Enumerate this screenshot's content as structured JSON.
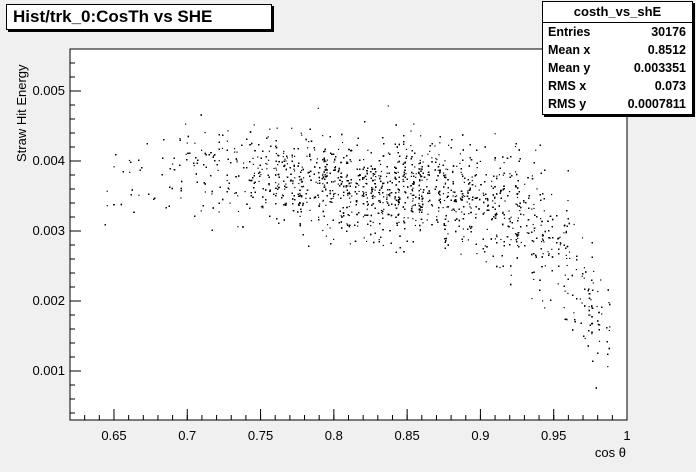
{
  "chart_data": {
    "type": "scatter",
    "title": "Hist/trk_0:CosTh vs SHE",
    "xlabel": "cos θ",
    "ylabel": "Straw Hit Energy",
    "xlim": [
      0.62,
      1.0
    ],
    "ylim": [
      0.0003,
      0.0056
    ],
    "xticks": [
      0.65,
      0.7,
      0.75,
      0.8,
      0.85,
      0.9,
      0.95,
      1.0
    ],
    "xtick_labels": [
      "0.65",
      "0.7",
      "0.75",
      "0.8",
      "0.85",
      "0.9",
      "0.95",
      "1"
    ],
    "yticks": [
      0.001,
      0.002,
      0.003,
      0.004,
      0.005
    ],
    "ytick_labels": [
      "0.001",
      "0.002",
      "0.003",
      "0.004",
      "0.005"
    ],
    "grid": false,
    "legend": "none",
    "density_profile": {
      "x": [
        0.65,
        0.67,
        0.69,
        0.71,
        0.73,
        0.75,
        0.77,
        0.79,
        0.81,
        0.83,
        0.85,
        0.87,
        0.89,
        0.91,
        0.93,
        0.95,
        0.97,
        0.985
      ],
      "relative_density": [
        0.08,
        0.1,
        0.15,
        0.25,
        0.35,
        0.5,
        0.7,
        0.8,
        0.9,
        1.0,
        1.0,
        0.95,
        0.8,
        0.65,
        0.55,
        0.45,
        0.5,
        0.3
      ],
      "y_center": [
        0.0037,
        0.0037,
        0.0038,
        0.0039,
        0.0039,
        0.0039,
        0.0038,
        0.0037,
        0.0036,
        0.0036,
        0.0036,
        0.0036,
        0.0035,
        0.0034,
        0.0032,
        0.003,
        0.0022,
        0.0015
      ],
      "y_spread": [
        0.0008,
        0.0008,
        0.0008,
        0.0008,
        0.0008,
        0.0008,
        0.0008,
        0.0008,
        0.0008,
        0.0008,
        0.0008,
        0.0008,
        0.0009,
        0.001,
        0.0011,
        0.0012,
        0.0012,
        0.0009
      ]
    },
    "stats": {
      "name": "costh_vs_shE",
      "entries_label": "Entries",
      "entries": "30176",
      "mean_x_label": "Mean x",
      "mean_x": "0.8512",
      "mean_y_label": "Mean y",
      "mean_y": "0.003351",
      "rms_x_label": "RMS x",
      "rms_x": "0.073",
      "rms_y_label": "RMS y",
      "rms_y": "0.0007811"
    }
  }
}
